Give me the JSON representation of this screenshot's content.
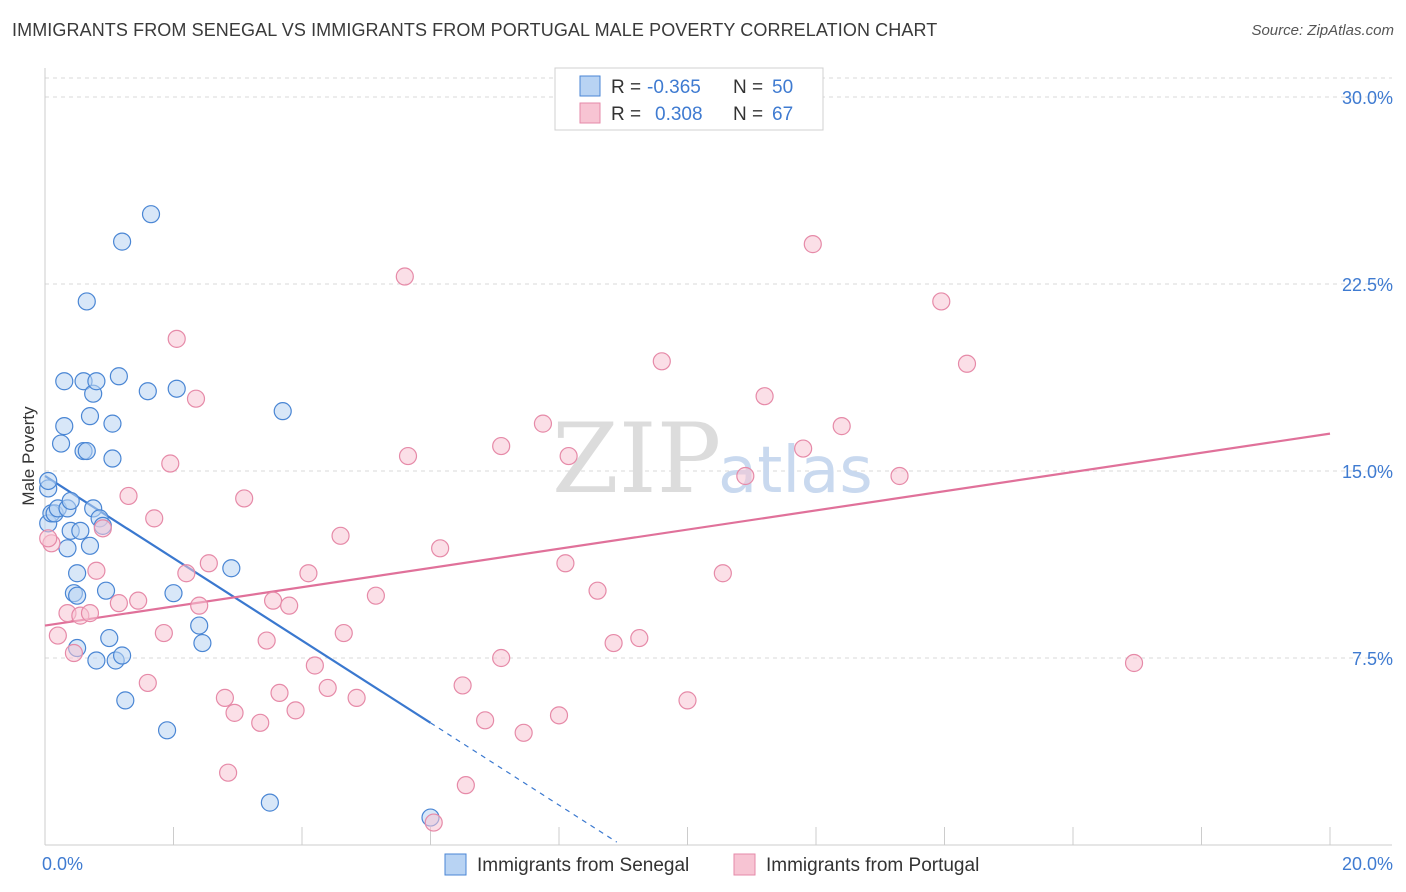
{
  "header": {
    "title": "IMMIGRANTS FROM SENEGAL VS IMMIGRANTS FROM PORTUGAL MALE POVERTY CORRELATION CHART",
    "source": "Source: ZipAtlas.com"
  },
  "watermark": {
    "zip": "ZIP",
    "atlas": "atlas"
  },
  "colors": {
    "senegal_fill": "#b8d3f3",
    "senegal_stroke": "#4a86d4",
    "senegal_line": "#3a78cf",
    "portugal_fill": "#f7c4d3",
    "portugal_stroke": "#e68aa8",
    "portugal_line": "#e0719a",
    "grid": "#d9d9d9",
    "tick_text": "#3f7bd1"
  },
  "legend": {
    "r_label": "R =",
    "n_label": "N =",
    "senegal": {
      "r": "-0.365",
      "n": "50"
    },
    "portugal": {
      "r": "0.308",
      "n": "67"
    }
  },
  "chart_data": {
    "type": "scatter",
    "title": "IMMIGRANTS FROM SENEGAL VS IMMIGRANTS FROM PORTUGAL MALE POVERTY CORRELATION CHART",
    "xlabel": "",
    "ylabel": "Male Poverty",
    "xlim": [
      0,
      20
    ],
    "ylim": [
      0,
      30
    ],
    "x_tick_labels": [
      "0.0%",
      "20.0%"
    ],
    "y_ticks": [
      {
        "value": 7.5,
        "label": "7.5%"
      },
      {
        "value": 15,
        "label": "15.0%"
      },
      {
        "value": 22.5,
        "label": "22.5%"
      },
      {
        "value": 30,
        "label": "30.0%"
      }
    ],
    "series": [
      {
        "name": "Immigrants from Senegal",
        "r": -0.365,
        "n": 50,
        "trend": {
          "x0": 0.0,
          "y0": 14.8,
          "x1": 6.0,
          "y1": 4.9,
          "dash_to_x": 8.9
        },
        "points": [
          [
            0.05,
            14.3
          ],
          [
            0.05,
            12.9
          ],
          [
            0.1,
            13.3
          ],
          [
            0.15,
            13.3
          ],
          [
            0.2,
            13.5
          ],
          [
            0.25,
            16.1
          ],
          [
            0.3,
            18.6
          ],
          [
            0.3,
            16.8
          ],
          [
            0.35,
            13.5
          ],
          [
            0.4,
            13.8
          ],
          [
            0.35,
            11.9
          ],
          [
            0.4,
            12.6
          ],
          [
            0.45,
            10.1
          ],
          [
            0.5,
            10.9
          ],
          [
            0.5,
            7.9
          ],
          [
            0.55,
            12.6
          ],
          [
            0.6,
            18.6
          ],
          [
            0.6,
            15.8
          ],
          [
            0.65,
            15.8
          ],
          [
            0.65,
            21.8
          ],
          [
            0.7,
            12.0
          ],
          [
            0.7,
            17.2
          ],
          [
            0.75,
            13.5
          ],
          [
            0.75,
            18.1
          ],
          [
            0.8,
            18.6
          ],
          [
            0.8,
            7.4
          ],
          [
            0.85,
            13.1
          ],
          [
            0.9,
            12.8
          ],
          [
            0.95,
            10.2
          ],
          [
            1.0,
            8.3
          ],
          [
            1.05,
            16.9
          ],
          [
            1.05,
            15.5
          ],
          [
            1.1,
            7.4
          ],
          [
            1.15,
            18.8
          ],
          [
            1.2,
            24.2
          ],
          [
            1.2,
            7.6
          ],
          [
            1.25,
            5.8
          ],
          [
            1.6,
            18.2
          ],
          [
            1.65,
            25.3
          ],
          [
            1.9,
            4.6
          ],
          [
            2.0,
            10.1
          ],
          [
            2.05,
            18.3
          ],
          [
            2.4,
            8.8
          ],
          [
            2.45,
            8.1
          ],
          [
            2.9,
            11.1
          ],
          [
            3.5,
            1.7
          ],
          [
            3.7,
            17.4
          ],
          [
            6.0,
            1.1
          ],
          [
            0.05,
            14.6
          ],
          [
            0.5,
            10.0
          ]
        ]
      },
      {
        "name": "Immigrants from Portugal",
        "r": 0.308,
        "n": 67,
        "trend": {
          "x0": 0.0,
          "y0": 8.8,
          "x1": 20.0,
          "y1": 16.5
        },
        "points": [
          [
            0.1,
            12.1
          ],
          [
            0.2,
            8.4
          ],
          [
            0.35,
            9.3
          ],
          [
            0.45,
            7.7
          ],
          [
            0.55,
            9.2
          ],
          [
            0.7,
            9.3
          ],
          [
            0.8,
            11.0
          ],
          [
            0.9,
            12.7
          ],
          [
            1.15,
            9.7
          ],
          [
            1.3,
            14.0
          ],
          [
            1.45,
            9.8
          ],
          [
            1.6,
            6.5
          ],
          [
            1.7,
            13.1
          ],
          [
            1.85,
            8.5
          ],
          [
            1.95,
            15.3
          ],
          [
            2.05,
            20.3
          ],
          [
            2.2,
            10.9
          ],
          [
            2.35,
            17.9
          ],
          [
            2.4,
            9.6
          ],
          [
            2.55,
            11.3
          ],
          [
            2.8,
            5.9
          ],
          [
            2.85,
            2.9
          ],
          [
            2.95,
            5.3
          ],
          [
            3.1,
            13.9
          ],
          [
            3.35,
            4.9
          ],
          [
            3.45,
            8.2
          ],
          [
            3.55,
            9.8
          ],
          [
            3.65,
            6.1
          ],
          [
            3.8,
            9.6
          ],
          [
            3.9,
            5.4
          ],
          [
            4.1,
            10.9
          ],
          [
            4.2,
            7.2
          ],
          [
            4.4,
            6.3
          ],
          [
            4.6,
            12.4
          ],
          [
            4.65,
            8.5
          ],
          [
            4.85,
            5.9
          ],
          [
            5.15,
            10.0
          ],
          [
            5.6,
            22.8
          ],
          [
            5.65,
            15.6
          ],
          [
            6.05,
            0.9
          ],
          [
            6.15,
            11.9
          ],
          [
            6.5,
            6.4
          ],
          [
            6.55,
            2.4
          ],
          [
            6.85,
            5.0
          ],
          [
            7.1,
            7.5
          ],
          [
            7.1,
            16.0
          ],
          [
            7.45,
            4.5
          ],
          [
            7.75,
            16.9
          ],
          [
            8.0,
            5.2
          ],
          [
            8.1,
            11.3
          ],
          [
            8.15,
            15.6
          ],
          [
            8.6,
            10.2
          ],
          [
            8.85,
            8.1
          ],
          [
            9.25,
            8.3
          ],
          [
            9.6,
            19.4
          ],
          [
            10.0,
            5.8
          ],
          [
            10.55,
            10.9
          ],
          [
            10.9,
            14.8
          ],
          [
            11.2,
            18.0
          ],
          [
            11.8,
            15.9
          ],
          [
            11.95,
            24.1
          ],
          [
            12.4,
            16.8
          ],
          [
            13.3,
            14.8
          ],
          [
            13.95,
            21.8
          ],
          [
            14.35,
            19.3
          ],
          [
            16.95,
            7.3
          ],
          [
            0.05,
            12.3
          ]
        ]
      }
    ]
  },
  "bottom_legend": {
    "senegal": "Immigrants from Senegal",
    "portugal": "Immigrants from Portugal"
  }
}
